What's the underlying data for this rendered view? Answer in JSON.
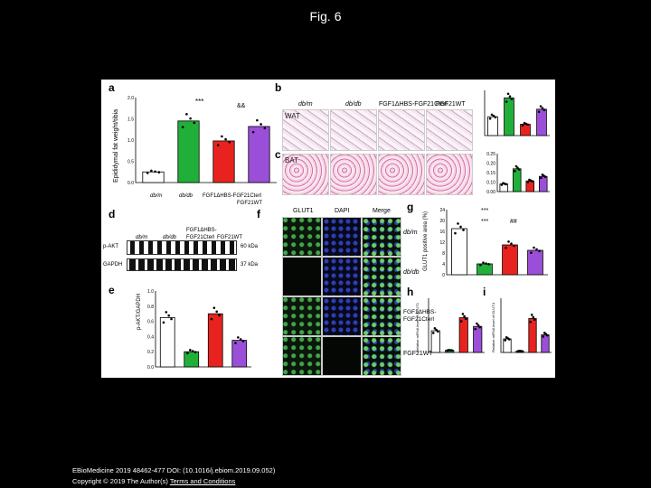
{
  "slide": {
    "title": "Fig. 6"
  },
  "caption": {
    "citation": "EBioMedicine 2019 48462-477 DOI: (10.1016/j.ebiom.2019.09.052)",
    "copyright": "Copyright © 2019 The Author(s)",
    "terms_link": "Terms and Conditions"
  },
  "colors": {
    "white": "#ffffff",
    "green": "#20b03a",
    "red": "#e8231f",
    "purple": "#9b4fd8",
    "black": "#000000"
  },
  "panels": {
    "a": {
      "label": "a",
      "ylabel": "Epididymal fat weight/tibia",
      "sig1": "***",
      "sig2": "&&"
    },
    "b": {
      "label": "b",
      "region": "WAT",
      "ylabel": "Relative area of WAT"
    },
    "c": {
      "label": "c",
      "region": "BAT",
      "ylabel": "Relative area of BAT"
    },
    "d": {
      "label": "d",
      "col1": "db/m",
      "col2": "db/db",
      "col3a": "FGF1ΔHBS-",
      "col3b": "FGF21Cterl",
      "col4": "FGF21WT",
      "row1": "p-AKT",
      "row2": "GAPDH",
      "kda1": "60 kDa",
      "kda2": "37 kDa"
    },
    "e": {
      "label": "e",
      "ylabel": "p-AKT/GAPDH"
    },
    "f": {
      "label": "f",
      "col1": "GLUT1",
      "col2": "DAPI",
      "col3": "Merge",
      "row1": "db/m",
      "row2": "db/db",
      "row3a": "FGF1ΔHBS-",
      "row3b": "FGF21Cterl",
      "row4": "FGF21WT"
    },
    "g": {
      "label": "g",
      "ylabel": "GLUT1 positive area (%)",
      "sig1": "***",
      "sig2": "***",
      "sig3": "##"
    },
    "h": {
      "label": "h",
      "ylabel": "Relative mRNA level of GLUT1"
    },
    "i": {
      "label": "i",
      "ylabel": "Relative mRNA level of GLUT4"
    },
    "headers": {
      "dbm": "db/m",
      "dbdb": "db/db",
      "fgf1": "FGF1ΔHBS-FGF21Cterl",
      "fgf21": "FGF21WT"
    }
  },
  "chart_data": [
    {
      "panel": "a",
      "type": "bar",
      "categories": [
        "db/m",
        "db/db",
        "FGF1ΔHBS-FGF21Cterl",
        "FGF21WT"
      ],
      "values": [
        0.25,
        1.45,
        0.98,
        1.32
      ],
      "ylim": [
        0,
        2.0
      ],
      "yticks": [
        "0.0",
        "0.5",
        "1.0",
        "1.5",
        "2.0"
      ],
      "ylabel": "Epididymal fat weight/tibia"
    },
    {
      "panel": "b",
      "type": "bar",
      "categories": [
        "db/m",
        "db/db",
        "FGF1ΔHBS-FGF21Cterl",
        "FGF21WT"
      ],
      "values": [
        0.5,
        1.0,
        0.3,
        0.7
      ],
      "ylim": [
        0,
        1.2
      ],
      "yticks": [],
      "ylabel": "Relative area of WAT"
    },
    {
      "panel": "c",
      "type": "bar",
      "categories": [
        "db/m",
        "db/db",
        "FGF1ΔHBS-FGF21Cterl",
        "FGF21WT"
      ],
      "values": [
        0.05,
        0.15,
        0.07,
        0.1
      ],
      "ylim": [
        0,
        0.25
      ],
      "yticks": [
        "0.00",
        "0.10",
        "0.15",
        "0.20",
        "0.25"
      ],
      "ylabel": "Relative area of BAT"
    },
    {
      "panel": "e",
      "type": "bar",
      "categories": [
        "db/m",
        "db/db",
        "FGF1ΔHBS-FGF21Cterl",
        "FGF21WT"
      ],
      "values": [
        0.65,
        0.2,
        0.7,
        0.35
      ],
      "ylim": [
        0,
        1.0
      ],
      "yticks": [
        "0.0",
        "0.2",
        "0.4",
        "0.6",
        "0.8",
        "1.0"
      ],
      "ylabel": "p-AKT/GAPDH"
    },
    {
      "panel": "g",
      "type": "bar",
      "categories": [
        "db/m",
        "db/db",
        "FGF1ΔHBS-FGF21Cterl",
        "FGF21WT"
      ],
      "values": [
        17,
        4,
        11,
        9
      ],
      "ylim": [
        0,
        24
      ],
      "yticks": [
        "0",
        "4",
        "8",
        "12",
        "16",
        "20",
        "24"
      ],
      "ylabel": "GLUT1 positive area (%)"
    },
    {
      "panel": "h",
      "type": "bar",
      "categories": [
        "db/m",
        "db/db",
        "FGF1ΔHBS-FGF21Cterl",
        "FGF21WT"
      ],
      "values": [
        1.0,
        0.1,
        1.6,
        1.2
      ],
      "ylim": [
        0,
        2.5
      ],
      "yticks": [],
      "ylabel": "Relative mRNA level of GLUT1"
    },
    {
      "panel": "i",
      "type": "bar",
      "categories": [
        "db/m",
        "db/db",
        "FGF1ΔHBS-FGF21Cterl",
        "FGF21WT"
      ],
      "values": [
        1.0,
        0.1,
        2.5,
        1.3
      ],
      "ylim": [
        0,
        4
      ],
      "yticks": [],
      "ylabel": "Relative mRNA level of GLUT4"
    }
  ]
}
